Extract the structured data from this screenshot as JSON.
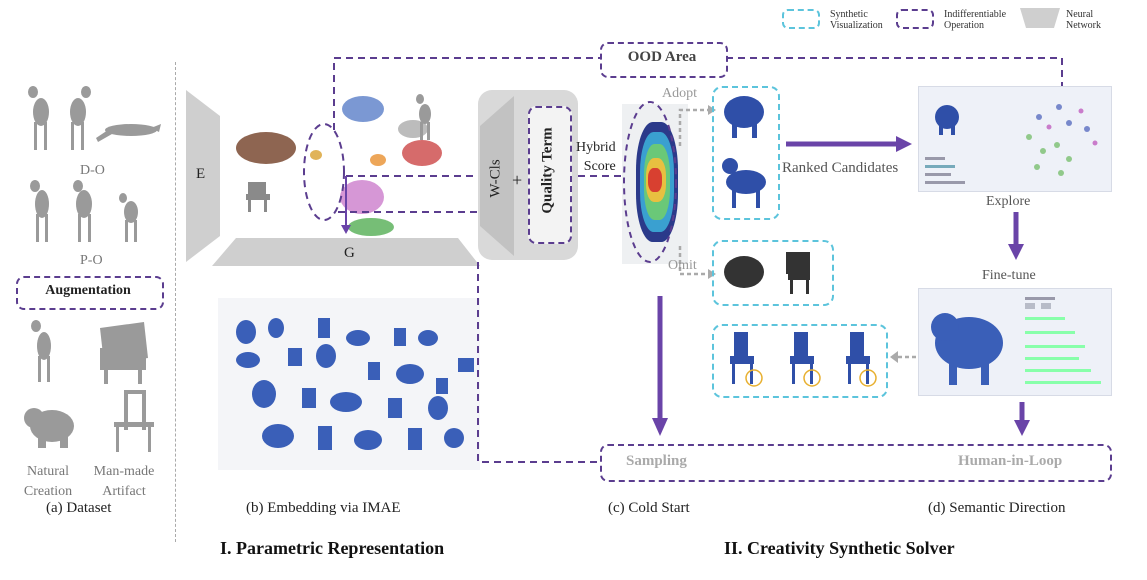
{
  "legend": {
    "synthetic": "Synthetic\nVisualization",
    "indiff": "Indifferentiable\nOperation",
    "nn": "Neural\nNetwork"
  },
  "dataset": {
    "do": "D-O",
    "po": "P-O",
    "augmentation": "Augmentation",
    "natural": "Natural\nCreation",
    "manmade": "Man-made\nArtifact",
    "caption": "(a)  Dataset"
  },
  "embedding": {
    "e": "E",
    "g": "G",
    "caption": "(b) Embedding via IMAE"
  },
  "solver": {
    "wcls": "W-Cls",
    "plus": "+",
    "quality": "Quality Term",
    "hybrid": "Hybrid\nScore",
    "adopt": "Adopt",
    "omit": "Omit",
    "ood": "OOD Area",
    "ranked": "Ranked Candidates",
    "explore": "Explore",
    "finetune": "Fine-tune",
    "sampling": "Sampling",
    "hil": "Human-in-Loop",
    "cold": "(c) Cold Start",
    "semantic": "(d) Semantic Direction"
  },
  "sections": {
    "one": "I. Parametric Representation",
    "two": "II. Creativity Synthetic Solver"
  },
  "colors": {
    "purple": "#5b3d8f",
    "arrow": "#6a44a8",
    "cyan": "#5cc4dc",
    "shape": "#3a5fb8"
  }
}
